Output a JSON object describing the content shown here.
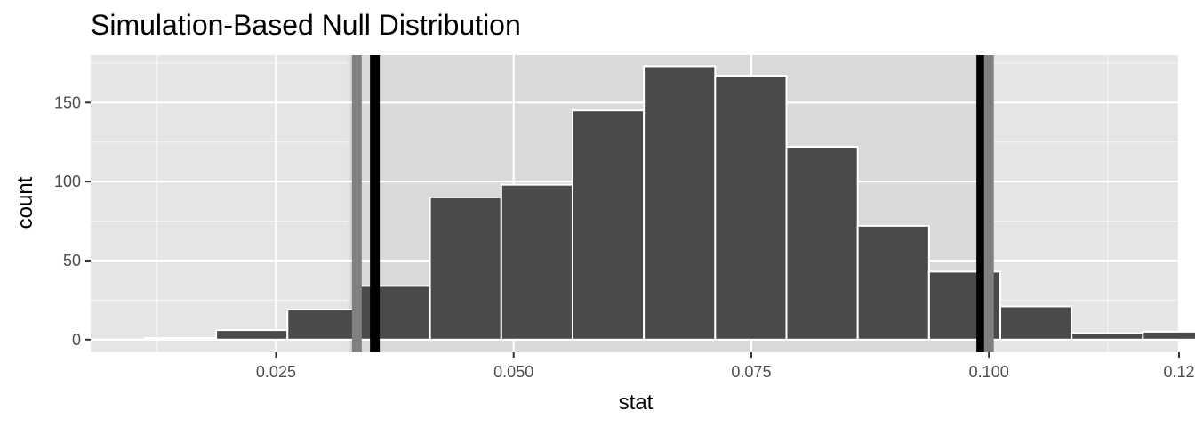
{
  "chart_data": {
    "type": "bar",
    "title": "Simulation-Based Null Distribution",
    "xlabel": "stat",
    "ylabel": "count",
    "xlim": [
      0.0055,
      0.12
    ],
    "ylim": [
      -8,
      180
    ],
    "x_ticks": [
      0.025,
      0.05,
      0.075,
      0.1,
      0.12
    ],
    "x_tick_labels": [
      "0.025",
      "0.050",
      "0.075",
      "0.100",
      "0.12"
    ],
    "y_ticks": [
      0,
      50,
      100,
      150
    ],
    "y_tick_labels": [
      "0",
      "50",
      "100",
      "150"
    ],
    "bin_width": 0.0075,
    "bins": [
      {
        "start": 0.0112,
        "end": 0.0187,
        "count": 1
      },
      {
        "start": 0.0187,
        "end": 0.0262,
        "count": 6
      },
      {
        "start": 0.0262,
        "end": 0.0337,
        "count": 19
      },
      {
        "start": 0.0337,
        "end": 0.0412,
        "count": 34
      },
      {
        "start": 0.0412,
        "end": 0.0487,
        "count": 90
      },
      {
        "start": 0.0487,
        "end": 0.0562,
        "count": 98
      },
      {
        "start": 0.0562,
        "end": 0.0637,
        "count": 145
      },
      {
        "start": 0.0637,
        "end": 0.0712,
        "count": 173
      },
      {
        "start": 0.0712,
        "end": 0.0787,
        "count": 167
      },
      {
        "start": 0.0787,
        "end": 0.0862,
        "count": 122
      },
      {
        "start": 0.0862,
        "end": 0.0937,
        "count": 72
      },
      {
        "start": 0.0937,
        "end": 0.1012,
        "count": 43
      },
      {
        "start": 0.1012,
        "end": 0.1087,
        "count": 21
      },
      {
        "start": 0.1087,
        "end": 0.1162,
        "count": 4
      },
      {
        "start": 0.1162,
        "end": 0.1237,
        "count": 5
      }
    ],
    "shade_band": [
      0.0326,
      0.1003
    ],
    "reference_lines": [
      {
        "x": 0.0335,
        "color": "#808080"
      },
      {
        "x": 0.0354,
        "color": "#000000"
      },
      {
        "x": 0.0992,
        "color": "#000000"
      },
      {
        "x": 0.1,
        "color": "#808080"
      }
    ],
    "colors": {
      "panel": "#e5e5e5",
      "shade": "#d9d9d9",
      "grid_major": "#ffffff",
      "bar_fill": "#4a4a4a",
      "bar_outline": "#ffffff",
      "ticks": "#333333"
    }
  }
}
